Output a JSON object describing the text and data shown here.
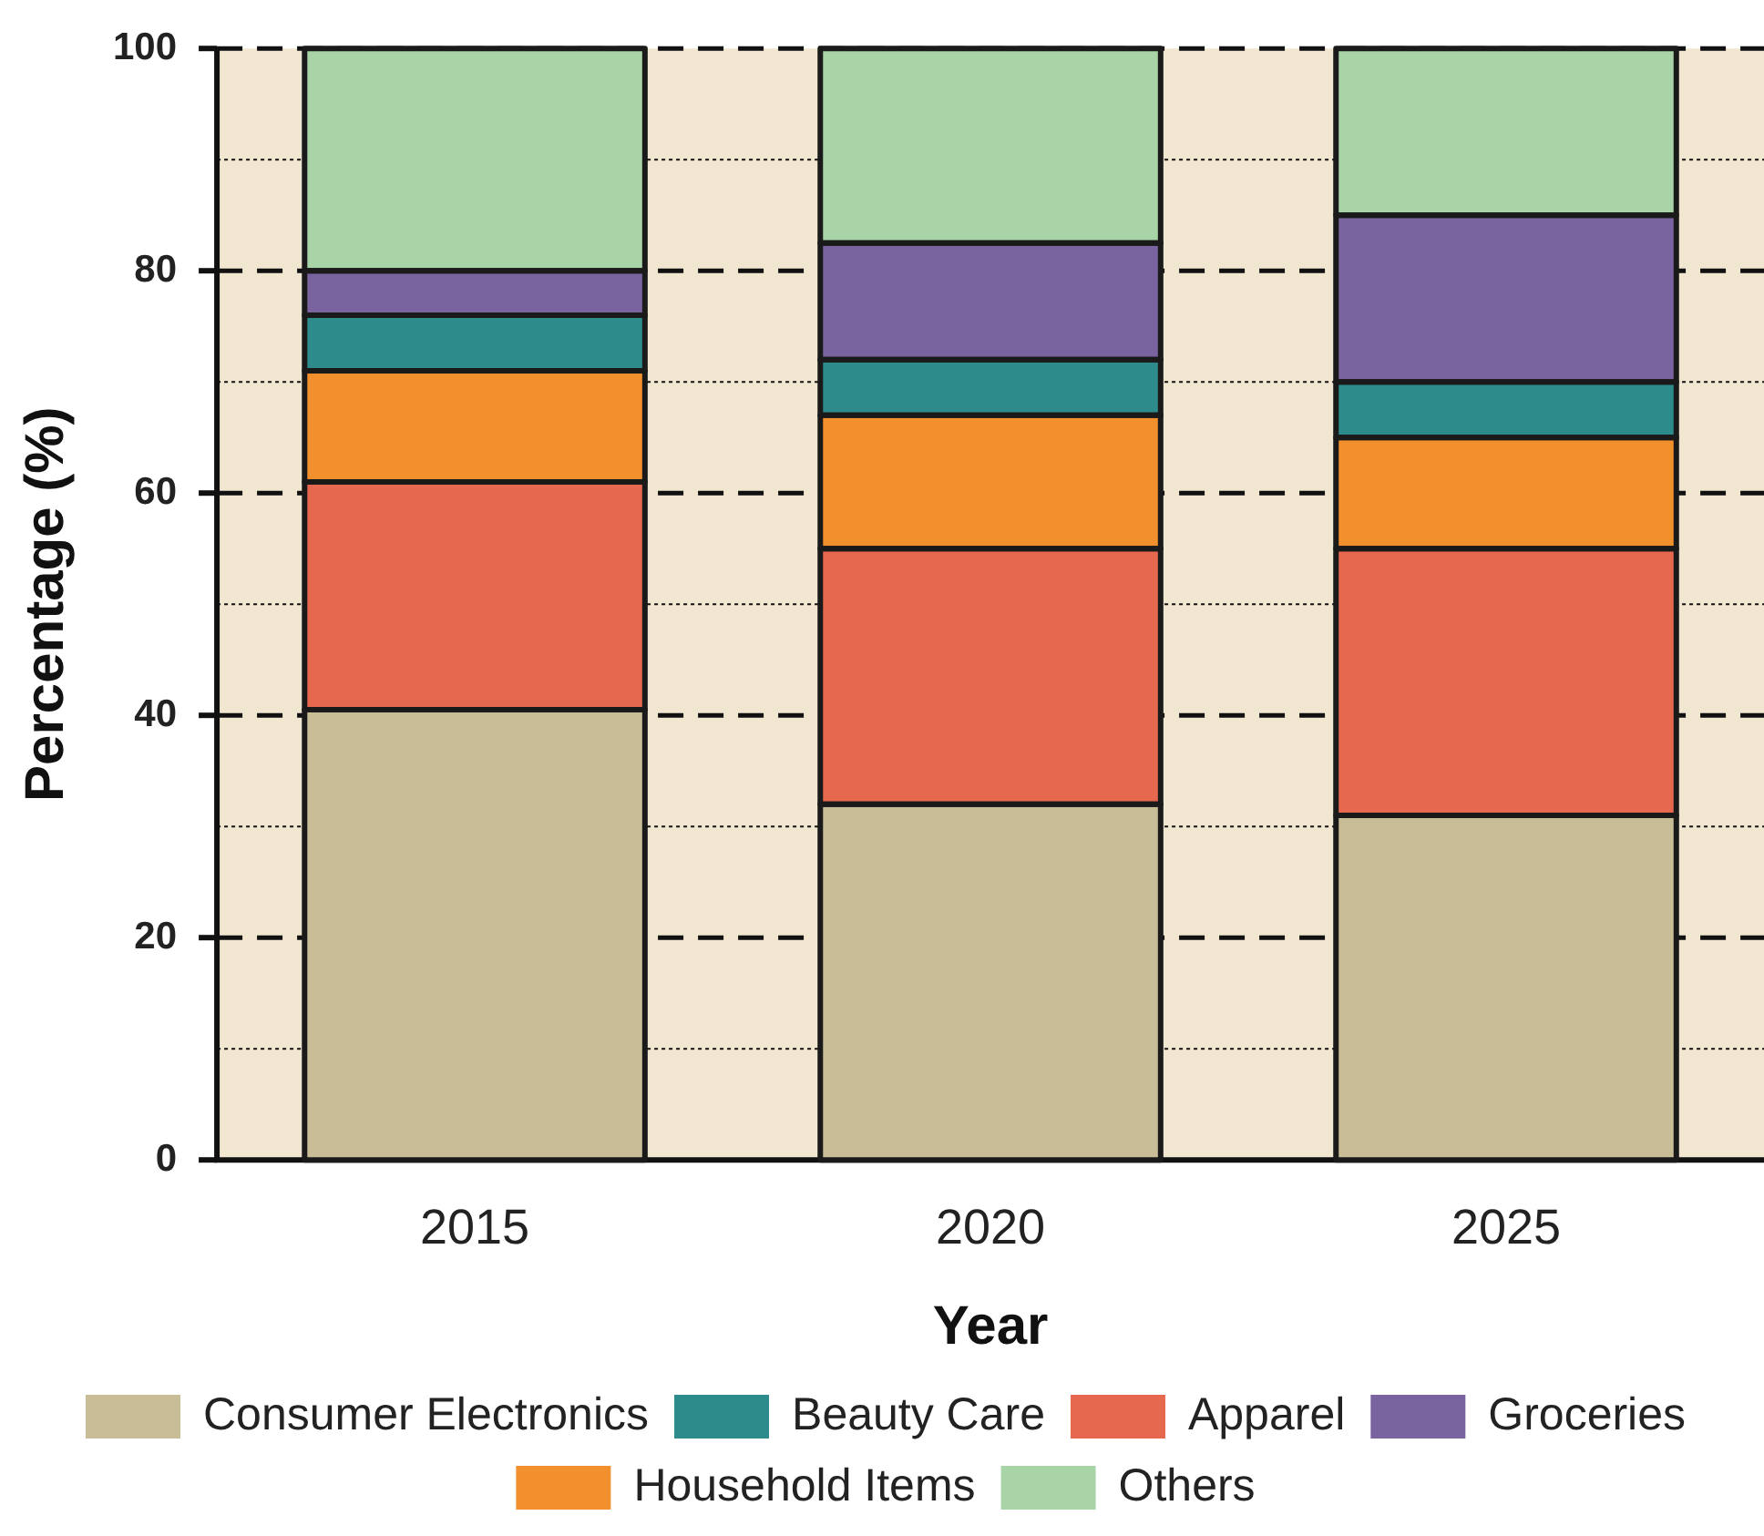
{
  "chart_data": {
    "type": "bar",
    "stacked": true,
    "xlabel": "Year",
    "ylabel": "Percentage (%)",
    "categories": [
      "2015",
      "2020",
      "2025"
    ],
    "series": [
      {
        "name": "Consumer Electronics",
        "color": "#c8bd96",
        "values": [
          40.5,
          32,
          31
        ]
      },
      {
        "name": "Apparel",
        "color": "#e5684f",
        "values": [
          20.5,
          23,
          24
        ]
      },
      {
        "name": "Household Items",
        "color": "#f2902e",
        "values": [
          10,
          12,
          10
        ]
      },
      {
        "name": "Beauty Care",
        "color": "#2e8b8b",
        "values": [
          5,
          5,
          5
        ]
      },
      {
        "name": "Groceries",
        "color": "#7a64a0",
        "values": [
          4,
          10.5,
          15
        ]
      },
      {
        "name": "Others",
        "color": "#a8d4a8",
        "values": [
          20,
          17.5,
          15
        ]
      }
    ],
    "ylim": [
      0,
      100
    ],
    "yticks": [
      0,
      {
        "value": 10,
        "label": null
      },
      20,
      {
        "value": 30,
        "label": null
      },
      40,
      {
        "value": 50,
        "label": null
      },
      60,
      {
        "value": 70,
        "label": null
      },
      80,
      {
        "value": 90,
        "label": null
      },
      100
    ],
    "grid": "y",
    "legend": "bottom"
  }
}
